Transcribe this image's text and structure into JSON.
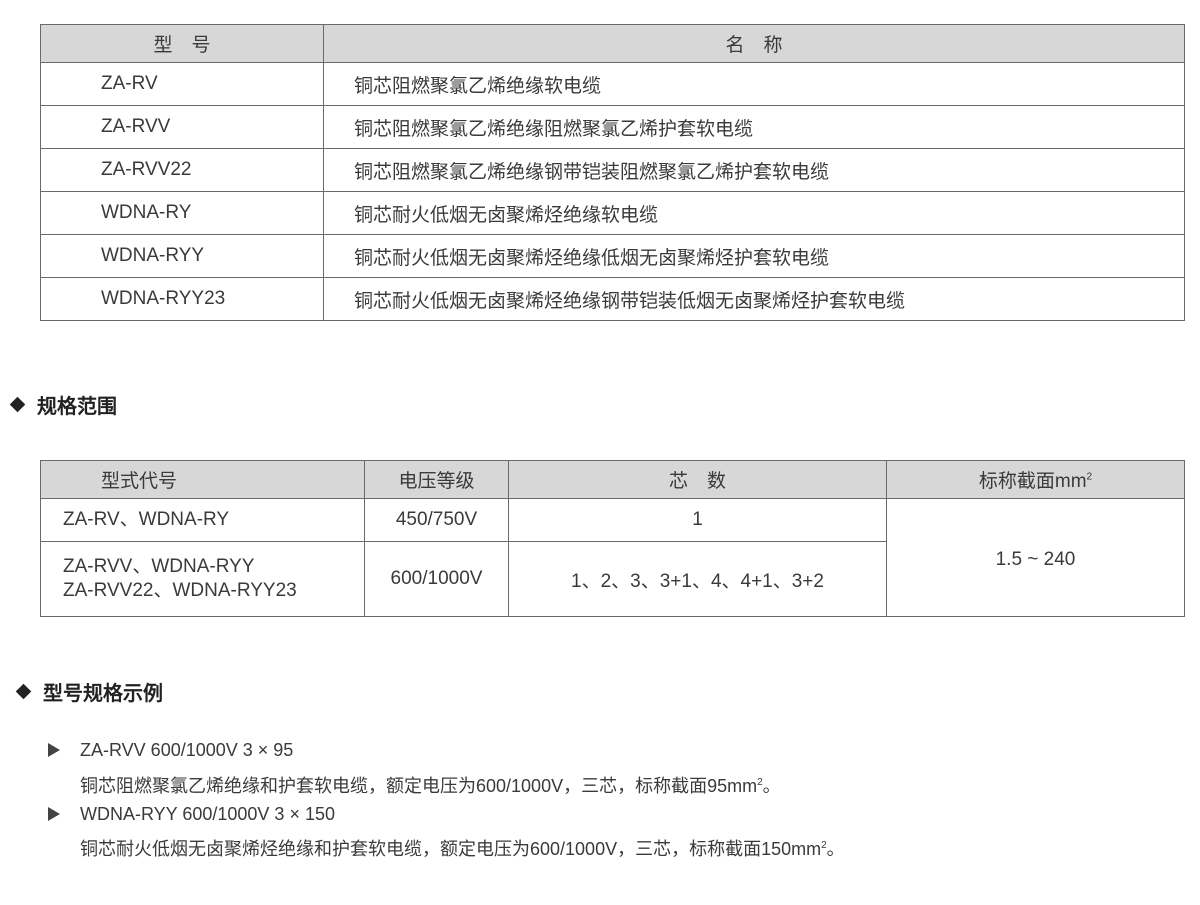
{
  "models_table": {
    "headers": [
      "型　号",
      "名　称"
    ],
    "rows": [
      [
        "ZA-RV",
        "铜芯阻燃聚氯乙烯绝缘软电缆"
      ],
      [
        "ZA-RVV",
        "铜芯阻燃聚氯乙烯绝缘阻燃聚氯乙烯护套软电缆"
      ],
      [
        "ZA-RVV22",
        "铜芯阻燃聚氯乙烯绝缘钢带铠装阻燃聚氯乙烯护套软电缆"
      ],
      [
        "WDNA-RY",
        "铜芯耐火低烟无卤聚烯烃绝缘软电缆"
      ],
      [
        "WDNA-RYY",
        "铜芯耐火低烟无卤聚烯烃绝缘低烟无卤聚烯烃护套软电缆"
      ],
      [
        "WDNA-RYY23",
        "铜芯耐火低烟无卤聚烯烃绝缘钢带铠装低烟无卤聚烯烃护套软电缆"
      ]
    ]
  },
  "spec_section": {
    "title": "规格范围",
    "headers": [
      "型式代号",
      "电压等级",
      "芯　数",
      "标称截面mm",
      "2"
    ],
    "row1": {
      "model": "ZA-RV、WDNA-RY",
      "voltage": "450/750V",
      "cores": "1"
    },
    "row2": {
      "model_line1": "ZA-RVV、WDNA-RYY",
      "model_line2": "ZA-RVV22、WDNA-RYY23",
      "voltage": "600/1000V",
      "cores": "1、2、3、3+1、4、4+1、3+2"
    },
    "section_range": "1.5 ~ 240"
  },
  "example_section": {
    "title": "型号规格示例",
    "items": [
      {
        "code": "ZA-RVV  600/1000V  3 × 95",
        "desc": "铜芯阻燃聚氯乙烯绝缘和护套软电缆，额定电压为600/1000V，三芯，标称截面95mm",
        "sup": "2",
        "end": "。"
      },
      {
        "code": "WDNA-RYY  600/1000V  3 × 150",
        "desc": "铜芯耐火低烟无卤聚烯烃绝缘和护套软电缆，额定电压为600/1000V，三芯，标称截面150mm",
        "sup": "2",
        "end": "。"
      }
    ]
  }
}
